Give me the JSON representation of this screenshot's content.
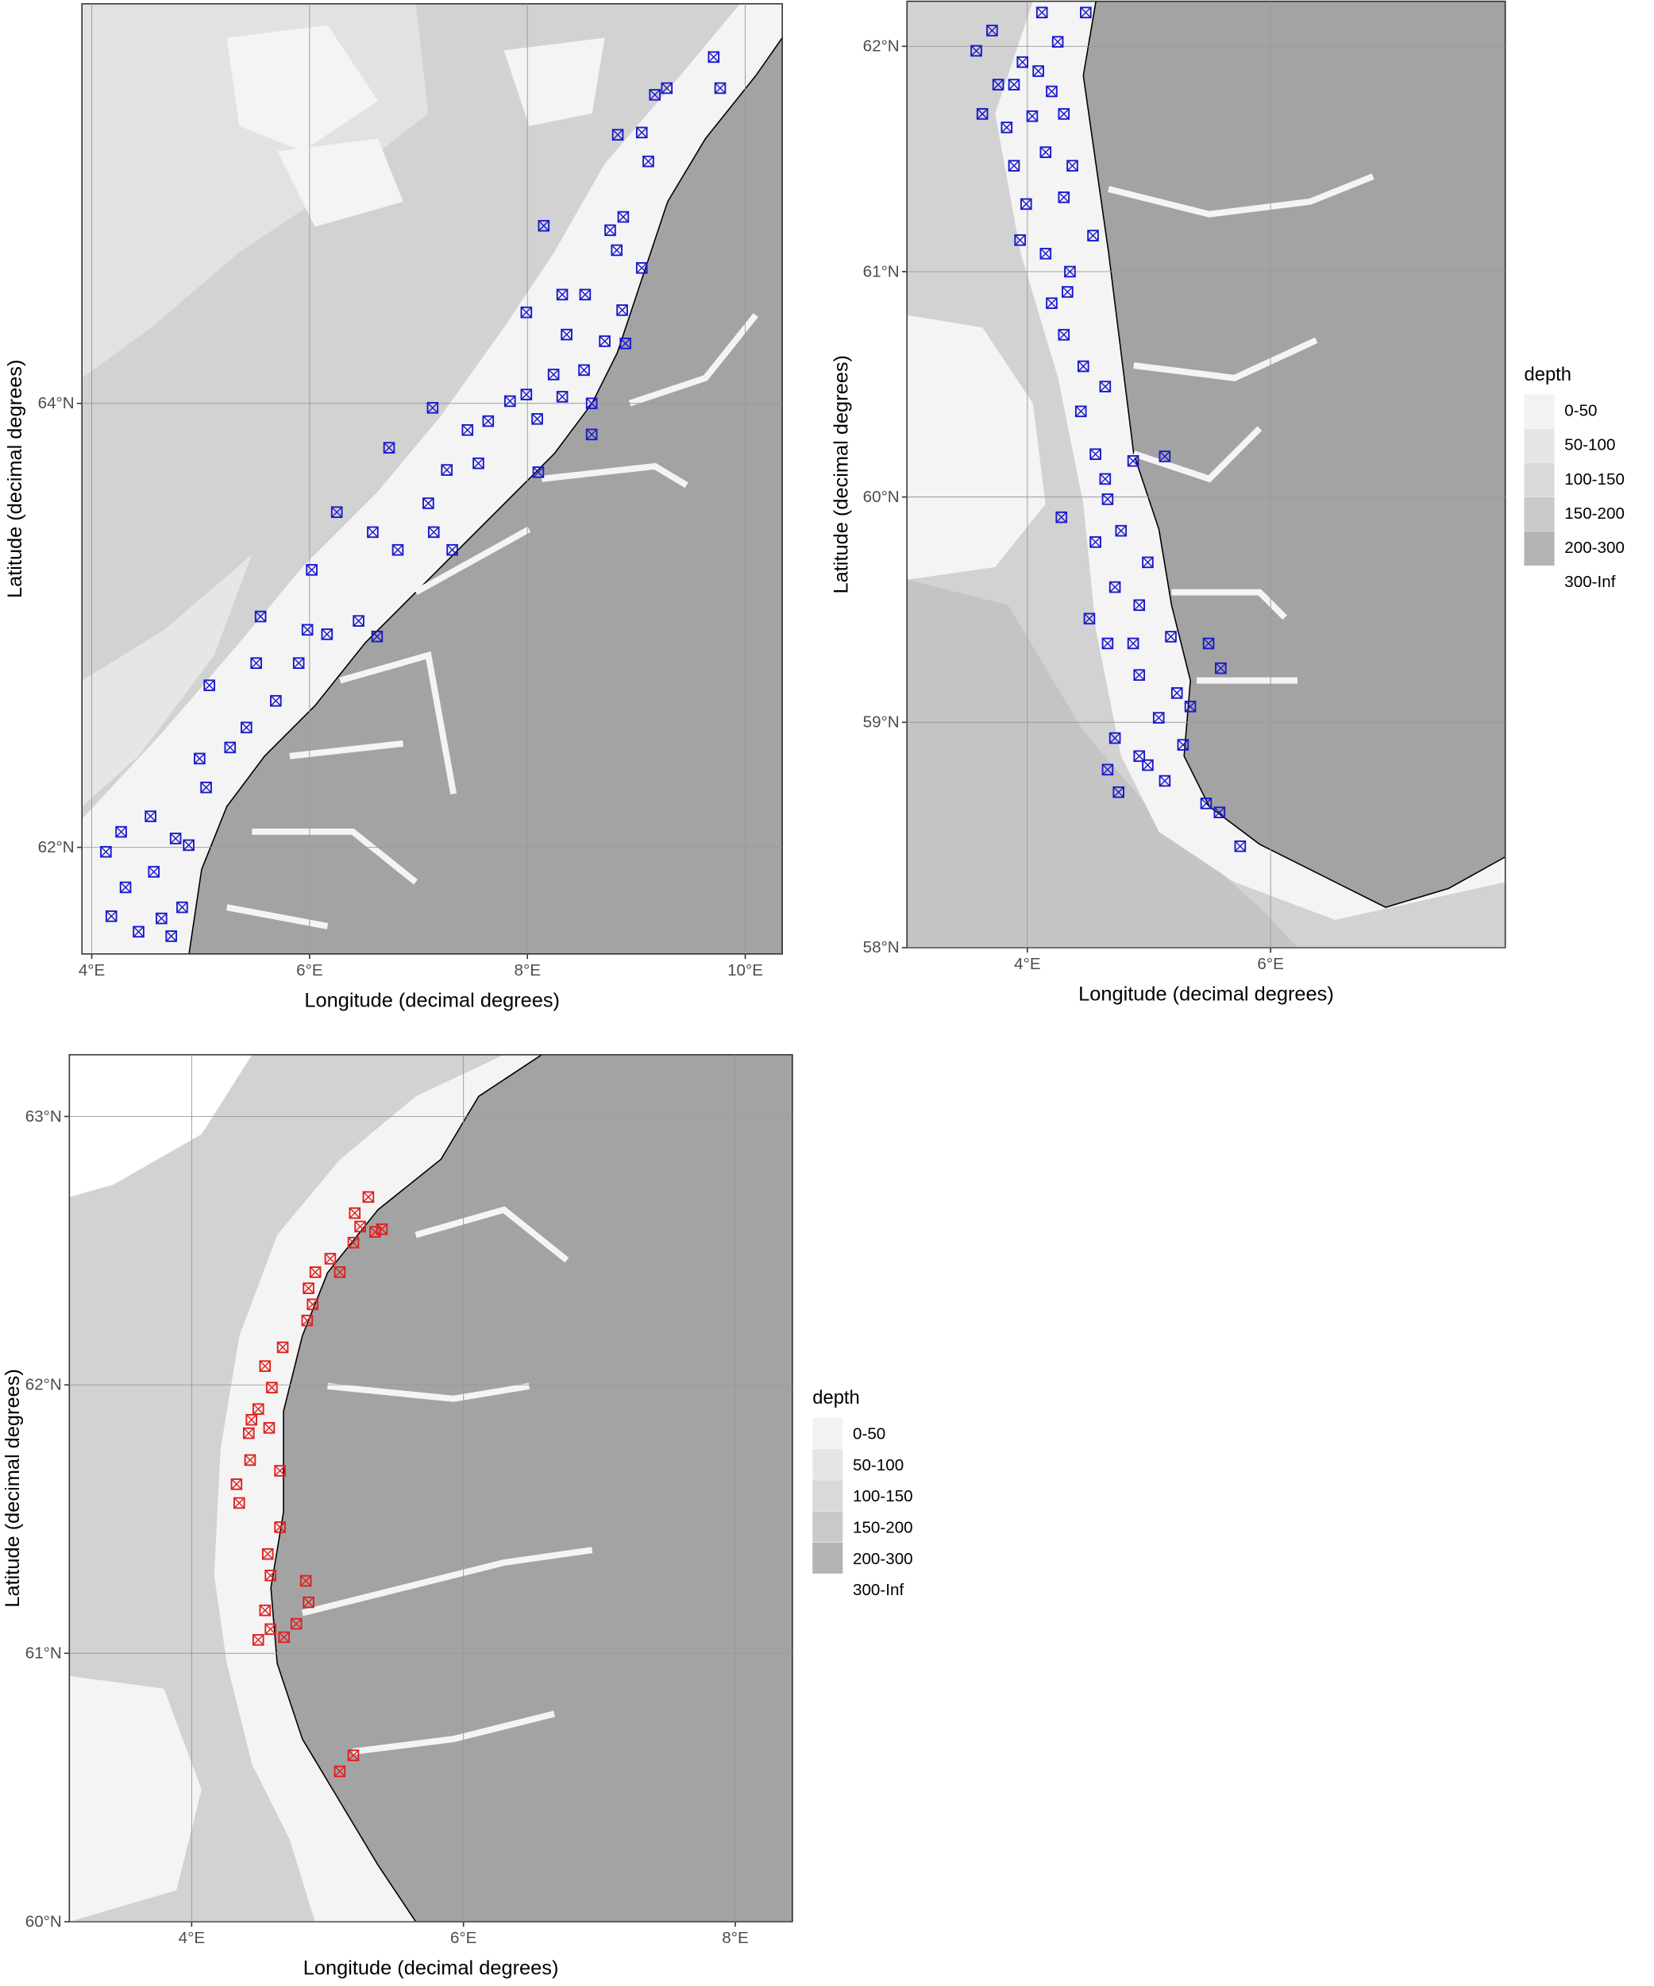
{
  "chart_data": [
    {
      "type": "scatter",
      "x_label": "Longitude (decimal degrees)",
      "y_label": "Latitude (decimal degrees)",
      "xlim": [
        3.91,
        10.34
      ],
      "ylim": [
        61.52,
        65.8
      ],
      "xticks": [
        {
          "value": 4,
          "label": "4°E"
        },
        {
          "value": 6,
          "label": "6°E"
        },
        {
          "value": 8,
          "label": "8°E"
        },
        {
          "value": 10,
          "label": "10°E"
        }
      ],
      "yticks": [
        {
          "value": 62,
          "label": "62°N"
        },
        {
          "value": 64,
          "label": "64°N"
        }
      ],
      "grid": true,
      "series": [
        {
          "color": "#1a1acc",
          "x": [
            9.71,
            9.77,
            9.17,
            9.28,
            8.83,
            9.05,
            9.11,
            8.15,
            8.88,
            8.76,
            8.82,
            9.05,
            8.32,
            8.53,
            8.87,
            7.99,
            8.36,
            8.71,
            8.9,
            8.24,
            8.52,
            7.99,
            8.32,
            8.59,
            7.13,
            7.45,
            7.64,
            7.84,
            8.09,
            8.59,
            6.73,
            7.26,
            7.55,
            8.1,
            6.25,
            6.58,
            7.09,
            7.14,
            6.81,
            6.02,
            7.31,
            5.55,
            5.98,
            6.16,
            6.45,
            6.62,
            5.51,
            5.9,
            5.08,
            5.69,
            5.42,
            4.99,
            5.27,
            5.05,
            4.54,
            4.27,
            4.13,
            4.77,
            4.89,
            4.57,
            4.31,
            4.18,
            4.64,
            4.83,
            4.73,
            4.43
          ],
          "y": [
            65.56,
            65.42,
            65.39,
            65.42,
            65.21,
            65.22,
            65.09,
            64.8,
            64.84,
            64.78,
            64.69,
            64.61,
            64.49,
            64.49,
            64.42,
            64.41,
            64.31,
            64.28,
            64.27,
            64.13,
            64.15,
            64.04,
            64.03,
            64.0,
            63.98,
            63.88,
            63.92,
            64.01,
            63.93,
            63.86,
            63.8,
            63.7,
            63.73,
            63.69,
            63.51,
            63.42,
            63.55,
            63.42,
            63.34,
            63.25,
            63.34,
            63.04,
            62.98,
            62.96,
            63.02,
            62.95,
            62.83,
            62.83,
            62.73,
            62.66,
            62.54,
            62.4,
            62.45,
            62.27,
            62.14,
            62.07,
            61.98,
            62.04,
            62.01,
            61.89,
            61.82,
            61.69,
            61.68,
            61.73,
            61.6,
            61.62
          ]
        }
      ]
    },
    {
      "type": "scatter",
      "x_label": "Longitude (decimal degrees)",
      "y_label": "Latitude (decimal degrees)",
      "xlim": [
        3.01,
        7.93
      ],
      "ylim": [
        58,
        62.2
      ],
      "xticks": [
        {
          "value": 4,
          "label": "4°E"
        },
        {
          "value": 6,
          "label": "6°E"
        }
      ],
      "yticks": [
        {
          "value": 58,
          "label": "58°N"
        },
        {
          "value": 59,
          "label": "59°N"
        },
        {
          "value": 60,
          "label": "60°N"
        },
        {
          "value": 61,
          "label": "61°N"
        },
        {
          "value": 62,
          "label": "62°N"
        }
      ],
      "grid": true,
      "series": [
        {
          "color": "#1a1acc",
          "x": [
            3.71,
            4.12,
            4.48,
            3.58,
            3.76,
            3.89,
            4.25,
            3.96,
            4.09,
            4.2,
            3.63,
            3.83,
            4.04,
            4.3,
            3.89,
            4.15,
            4.37,
            3.99,
            4.3,
            3.94,
            4.15,
            4.35,
            4.54,
            4.2,
            4.33,
            4.3,
            4.46,
            4.64,
            4.44,
            4.56,
            4.64,
            4.87,
            5.13,
            4.28,
            4.66,
            4.56,
            4.77,
            4.99,
            4.72,
            4.92,
            4.51,
            4.66,
            4.87,
            5.18,
            5.49,
            5.59,
            4.92,
            5.23,
            5.34,
            5.08,
            4.72,
            4.92,
            4.66,
            4.99,
            5.13,
            5.28,
            5.47,
            5.58,
            4.75,
            5.75
          ],
          "y": [
            62.07,
            62.15,
            62.15,
            61.98,
            61.83,
            61.83,
            62.02,
            61.93,
            61.89,
            61.8,
            61.7,
            61.64,
            61.69,
            61.7,
            61.47,
            61.53,
            61.47,
            61.3,
            61.33,
            61.14,
            61.08,
            61.0,
            61.16,
            60.86,
            60.91,
            60.72,
            60.58,
            60.49,
            60.38,
            60.19,
            60.08,
            60.16,
            60.18,
            59.91,
            59.99,
            59.8,
            59.85,
            59.71,
            59.6,
            59.52,
            59.46,
            59.35,
            59.35,
            59.38,
            59.35,
            59.24,
            59.21,
            59.13,
            59.07,
            59.02,
            58.93,
            58.85,
            58.79,
            58.81,
            58.74,
            58.9,
            58.64,
            58.6,
            58.69,
            58.45
          ]
        }
      ],
      "legend": {
        "title": "depth",
        "items": [
          {
            "label": "0-50",
            "color": "#f2f2f2"
          },
          {
            "label": "50-100",
            "color": "#e5e5e5"
          },
          {
            "label": "100-150",
            "color": "#d9d9d9"
          },
          {
            "label": "150-200",
            "color": "#c9c9c9"
          },
          {
            "label": "200-300",
            "color": "#b3b3b3"
          },
          {
            "label": "300-Inf",
            "color": "#ffffff"
          }
        ]
      }
    },
    {
      "type": "scatter",
      "x_label": "Longitude (decimal degrees)",
      "y_label": "Latitude (decimal degrees)",
      "xlim": [
        3.1,
        8.42
      ],
      "ylim": [
        60,
        63.23
      ],
      "xticks": [
        {
          "value": 4,
          "label": "4°E"
        },
        {
          "value": 6,
          "label": "6°E"
        },
        {
          "value": 8,
          "label": "8°E"
        }
      ],
      "yticks": [
        {
          "value": 60,
          "label": "60°N"
        },
        {
          "value": 61,
          "label": "61°N"
        },
        {
          "value": 62,
          "label": "62°N"
        },
        {
          "value": 63,
          "label": "63°N"
        }
      ],
      "grid": true,
      "series": [
        {
          "color": "#e02020",
          "x": [
            5.3,
            5.2,
            5.4,
            5.24,
            5.35,
            5.19,
            5.02,
            5.09,
            4.91,
            4.86,
            4.89,
            4.85,
            4.67,
            4.54,
            4.59,
            4.49,
            4.44,
            4.42,
            4.57,
            4.43,
            4.65,
            4.33,
            4.35,
            4.65,
            4.56,
            4.58,
            4.84,
            4.86,
            4.54,
            4.77,
            4.58,
            4.49,
            4.68,
            5.19,
            5.09
          ],
          "y": [
            62.7,
            62.64,
            62.58,
            62.59,
            62.57,
            62.53,
            62.47,
            62.42,
            62.42,
            62.36,
            62.3,
            62.24,
            62.14,
            62.07,
            61.99,
            61.91,
            61.87,
            61.82,
            61.84,
            61.72,
            61.68,
            61.63,
            61.56,
            61.47,
            61.37,
            61.29,
            61.27,
            61.19,
            61.16,
            61.11,
            61.09,
            61.05,
            61.06,
            60.62,
            60.56
          ]
        }
      ],
      "legend": {
        "title": "depth",
        "items": [
          {
            "label": "0-50",
            "color": "#f2f2f2"
          },
          {
            "label": "50-100",
            "color": "#e5e5e5"
          },
          {
            "label": "100-150",
            "color": "#d9d9d9"
          },
          {
            "label": "150-200",
            "color": "#c9c9c9"
          },
          {
            "label": "200-300",
            "color": "#b3b3b3"
          },
          {
            "label": "300-Inf",
            "color": "#ffffff"
          }
        ]
      }
    }
  ]
}
